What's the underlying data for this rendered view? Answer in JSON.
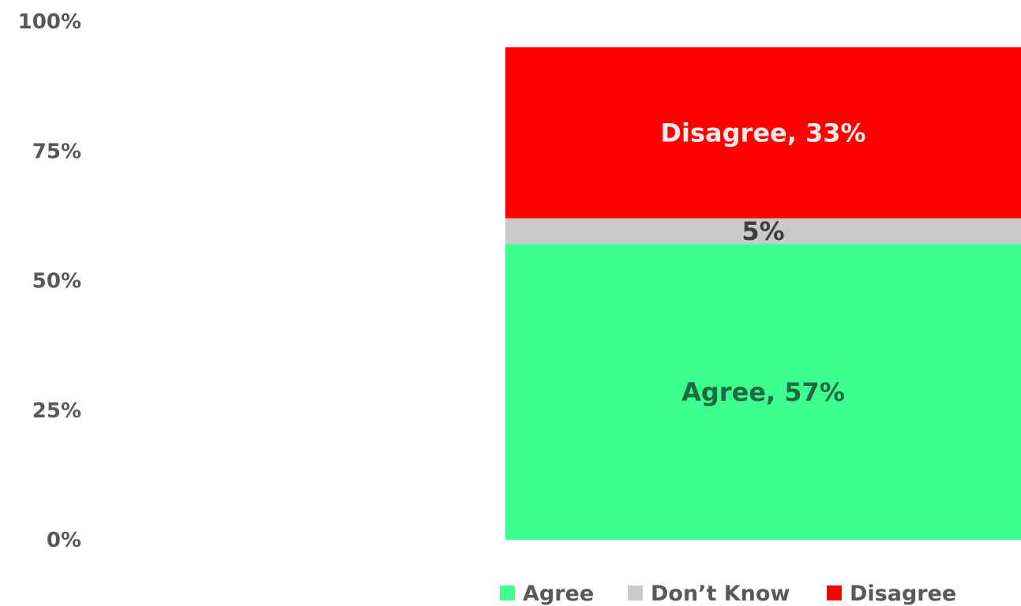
{
  "chart_data": {
    "type": "bar",
    "stacked": true,
    "categories": [
      ""
    ],
    "series": [
      {
        "name": "Agree",
        "values": [
          57
        ],
        "color": "#3dff8f",
        "label": "Agree, 57%",
        "label_color": "#1e6b40"
      },
      {
        "name": "Don’t Know",
        "values": [
          5
        ],
        "color": "#c9c9c9",
        "label": "5%",
        "label_color": "#3f3f3f"
      },
      {
        "name": "Disagree",
        "values": [
          33
        ],
        "color": "#ff0000",
        "label": "Disagree, 33%",
        "label_color": "#fde8e8"
      }
    ],
    "y_ticks": [
      "0%",
      "25%",
      "50%",
      "75%",
      "100%"
    ],
    "ylim": [
      0,
      100
    ],
    "grid": false,
    "legend_position": "bottom"
  }
}
